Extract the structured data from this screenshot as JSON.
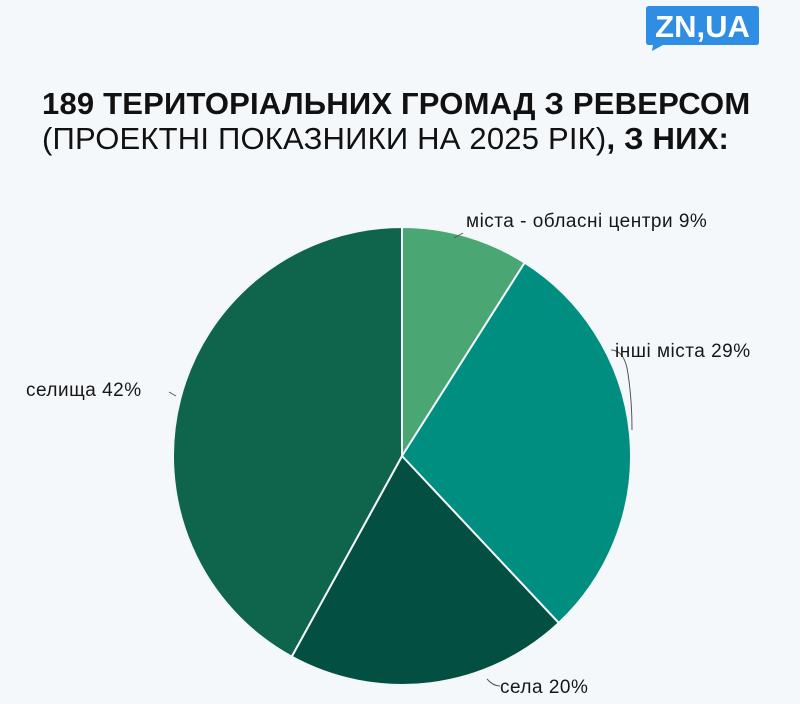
{
  "logo": {
    "text": "ZN,UA",
    "color": "#2f8de4"
  },
  "header": {
    "title_bold": "189 ТЕРИТОРІАЛЬНИХ ГРОМАД З РЕВЕРСОМ",
    "title_light": "(ПРОЕКТНІ ПОКАЗНИКИ НА 2025 РІК)",
    "title_tail": ", З НИХ:"
  },
  "chart_data": {
    "type": "pie",
    "title": "189 ТЕРИТОРІАЛЬНИХ ГРОМАД З РЕВЕРСОМ (ПРОЕКТНІ ПОКАЗНИКИ НА 2025 РІК), З НИХ:",
    "slices": [
      {
        "name": "міста - обласні центри",
        "value": 9,
        "label": "міста - обласні центри 9%",
        "color": "#4aa673"
      },
      {
        "name": "інші міста",
        "value": 29,
        "label": "інші міста 29%",
        "color": "#008e80"
      },
      {
        "name": "села",
        "value": 20,
        "label": "села 20%",
        "color": "#034f42"
      },
      {
        "name": "селища",
        "value": 42,
        "label": "селища 42%",
        "color": "#0f654b"
      }
    ],
    "start_angle": "12 o'clock",
    "direction": "clockwise",
    "legend": "none"
  }
}
